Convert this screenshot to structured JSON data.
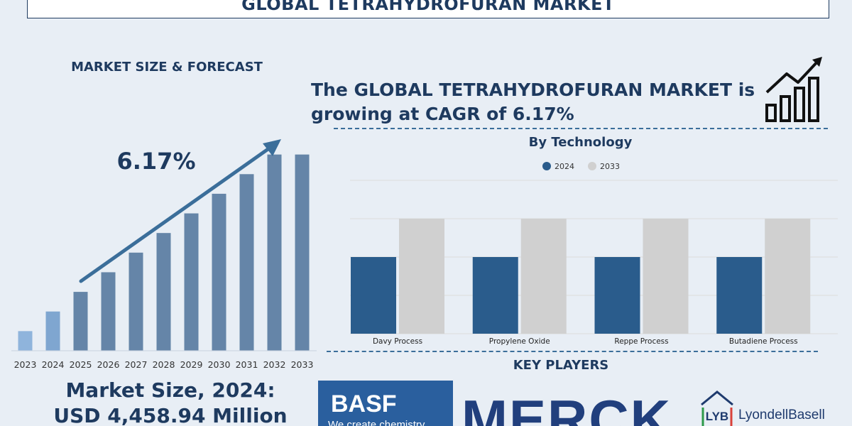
{
  "header": {
    "title": "GLOBAL TETRAHYDROFURAN MARKET"
  },
  "left_panel": {
    "heading": "MARKET SIZE & FORECAST",
    "cagr_label": "6.17%",
    "market_size_line1": "Market Size, 2024:",
    "market_size_line2": "USD 4,458.94 Million"
  },
  "right_panel": {
    "headline_line1": "The GLOBAL TETRAHYDROFURAN MARKET is",
    "headline_line2": "growing at CAGR of 6.17%",
    "chart_title": "By Technology",
    "key_players_heading": "KEY PLAYERS"
  },
  "icons": [
    "growth-chart-icon",
    "trend-arrow-icon"
  ],
  "logos": {
    "basf": {
      "word": "BASF",
      "tagline": "We create chemistry"
    },
    "merck": {
      "word": "MERCK"
    },
    "lyb": {
      "mark": "LYB",
      "word": "LyondellBasell"
    }
  },
  "colors": {
    "navy": "#1e3a5f",
    "bar_dark": "#2a5c8c",
    "bar_light": "#d0d0d0",
    "forecast_bar": "#6585a8",
    "first_bar": "#8fb4dc",
    "basf_blue": "#2a5f9e",
    "merck_blue": "#213f7d",
    "lyb_green": "#2e9a4a",
    "lyb_red": "#d8413a"
  },
  "chart_data": [
    {
      "type": "bar",
      "categories": [
        "2023",
        "2024",
        "2025",
        "2026",
        "2027",
        "2028",
        "2029",
        "2030",
        "2031",
        "2032",
        "2033"
      ],
      "values": [
        1.0,
        2.0,
        3.0,
        4.0,
        5.0,
        6.0,
        7.0,
        8.0,
        9.0,
        10.0,
        10.0
      ],
      "title": "",
      "xlabel": "",
      "ylabel": "",
      "ylim": [
        0,
        11
      ],
      "grid": false,
      "annotation": "6.17%"
    },
    {
      "type": "bar",
      "title": "By Technology",
      "categories": [
        "Davy Process",
        "Propylene Oxide",
        "Reppe Process",
        "Butadiene Process"
      ],
      "series": [
        {
          "name": "2024",
          "values": [
            2.0,
            2.0,
            2.0,
            2.0
          ]
        },
        {
          "name": "2033",
          "values": [
            3.0,
            3.0,
            3.0,
            3.0
          ]
        }
      ],
      "ylim": [
        0,
        4
      ],
      "grid": true,
      "legend": "top-center"
    }
  ]
}
